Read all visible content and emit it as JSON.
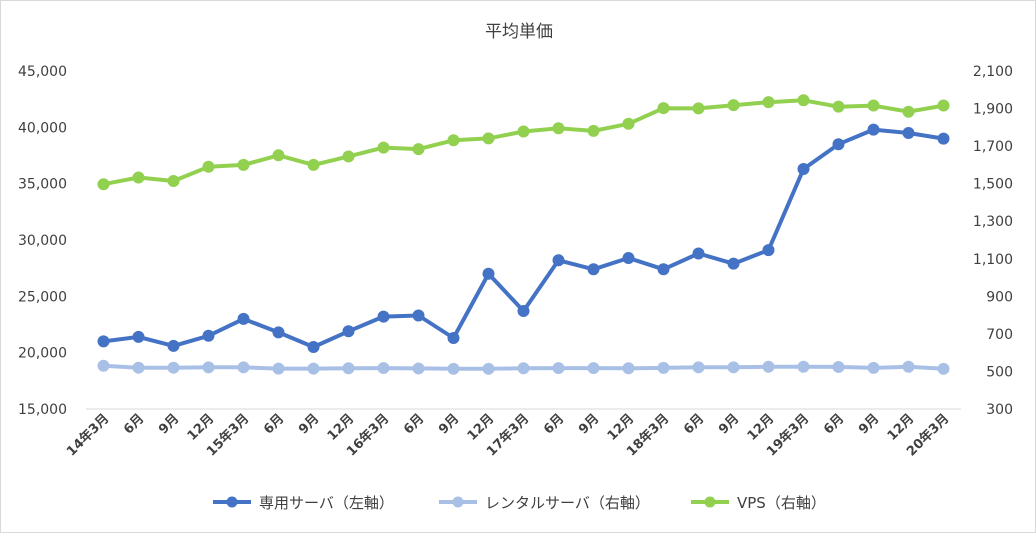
{
  "chart_data": {
    "type": "line",
    "title": "平均単価",
    "categories": [
      "14年3月",
      "6月",
      "9月",
      "12月",
      "15年3月",
      "6月",
      "9月",
      "12月",
      "16年3月",
      "6月",
      "9月",
      "12月",
      "17年3月",
      "6月",
      "9月",
      "12月",
      "18年3月",
      "6月",
      "9月",
      "12月",
      "19年3月",
      "6月",
      "9月",
      "12月",
      "20年3月"
    ],
    "y_left": {
      "ticks": [
        "15,000",
        "20,000",
        "25,000",
        "30,000",
        "35,000",
        "40,000",
        "45,000"
      ],
      "ylim": [
        15000,
        45000
      ]
    },
    "y_right": {
      "ticks": [
        "300",
        "500",
        "700",
        "900",
        "1,100",
        "1,300",
        "1,500",
        "1,700",
        "1,900",
        "2,100"
      ],
      "ylim": [
        300,
        2100
      ]
    },
    "grid": false,
    "legend_position": "bottom",
    "series": [
      {
        "name": "専用サーバ（左軸）",
        "axis": "left",
        "color": "#4472c4",
        "values": [
          21000,
          21400,
          20600,
          21500,
          23000,
          21800,
          20500,
          21900,
          23200,
          23300,
          21300,
          27000,
          23700,
          28200,
          27400,
          28400,
          27400,
          28800,
          27900,
          29100,
          36300,
          38500,
          39800,
          39500,
          39000
        ]
      },
      {
        "name": "レンタルサーバ（右軸）",
        "axis": "right",
        "color": "#a9c0e6",
        "values": [
          530,
          520,
          520,
          522,
          522,
          515,
          515,
          517,
          518,
          516,
          514,
          514,
          517,
          518,
          518,
          517,
          519,
          522,
          522,
          525,
          525,
          524,
          519,
          525,
          514
        ]
      },
      {
        "name": "VPS（右軸）",
        "axis": "right",
        "color": "#92d050",
        "values": [
          1497,
          1533,
          1514,
          1590,
          1600,
          1651,
          1600,
          1645,
          1692,
          1684,
          1731,
          1741,
          1778,
          1795,
          1781,
          1819,
          1902,
          1901,
          1918,
          1934,
          1944,
          1910,
          1916,
          1883,
          1916
        ]
      }
    ]
  }
}
